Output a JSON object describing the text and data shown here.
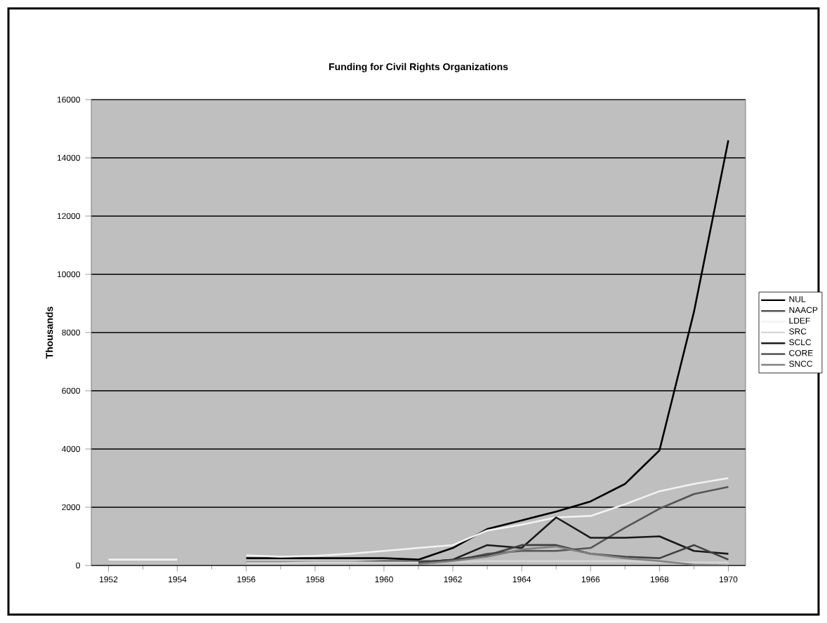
{
  "chart_data": {
    "type": "line",
    "title": "Funding for Civil Rights Organizations",
    "ylabel": "Thousands",
    "x": [
      1952,
      1953,
      1954,
      1955,
      1956,
      1957,
      1958,
      1959,
      1960,
      1961,
      1962,
      1963,
      1964,
      1965,
      1966,
      1967,
      1968,
      1969,
      1970
    ],
    "xlim": [
      1951.5,
      1970.5
    ],
    "xticks": [
      1952,
      1954,
      1956,
      1958,
      1960,
      1962,
      1964,
      1966,
      1968,
      1970
    ],
    "ylim": [
      0,
      16000
    ],
    "yticks": [
      0,
      2000,
      4000,
      6000,
      8000,
      10000,
      12000,
      14000,
      16000
    ],
    "grid": "y",
    "legend": "right",
    "marker": "none",
    "line_style": "solid",
    "series": [
      {
        "name": "NUL",
        "color": "#000000",
        "values": [
          null,
          null,
          null,
          null,
          250,
          250,
          250,
          250,
          250,
          200,
          600,
          1250,
          1550,
          1850,
          2200,
          2800,
          3950,
          8700,
          14600
        ]
      },
      {
        "name": "NAACP",
        "color": "#555555",
        "values": [
          null,
          null,
          null,
          null,
          100,
          100,
          100,
          100,
          150,
          150,
          150,
          400,
          500,
          500,
          600,
          1300,
          1950,
          2450,
          2700
        ]
      },
      {
        "name": "LDEF",
        "color": "#f2f2f2",
        "values": [
          200,
          200,
          200,
          null,
          350,
          300,
          330,
          400,
          500,
          600,
          700,
          1200,
          1400,
          1650,
          1700,
          2100,
          2550,
          2800,
          3000
        ]
      },
      {
        "name": "SRC",
        "color": "#d6d6d6",
        "values": [
          null,
          null,
          null,
          null,
          80,
          80,
          100,
          100,
          100,
          100,
          120,
          150,
          150,
          150,
          150,
          150,
          120,
          100,
          100
        ]
      },
      {
        "name": "SCLC",
        "color": "#1a1a1a",
        "values": [
          null,
          null,
          null,
          null,
          null,
          null,
          null,
          null,
          null,
          100,
          200,
          700,
          600,
          1650,
          950,
          950,
          1000,
          500,
          400
        ]
      },
      {
        "name": "CORE",
        "color": "#404040",
        "values": [
          null,
          null,
          null,
          null,
          null,
          null,
          null,
          null,
          null,
          100,
          200,
          350,
          700,
          700,
          400,
          300,
          250,
          700,
          200
        ]
      },
      {
        "name": "SNCC",
        "color": "#808080",
        "values": [
          null,
          null,
          null,
          null,
          null,
          null,
          null,
          null,
          null,
          50,
          150,
          300,
          550,
          650,
          400,
          250,
          150,
          30,
          0
        ]
      }
    ]
  }
}
